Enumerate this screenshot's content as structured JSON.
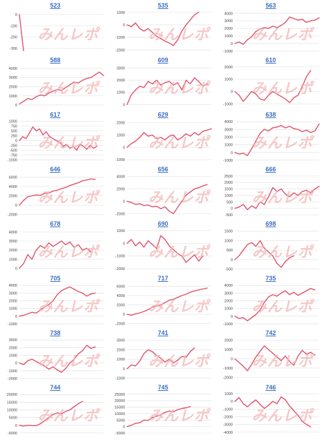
{
  "watermark": "みんレポ",
  "colors": {
    "line": "#e0526b",
    "grid": "#e3e3e3",
    "title": "#3a6fc4",
    "tick": "#444444"
  },
  "chart_data": [
    {
      "type": "line",
      "title": "523",
      "yticks": [
        "0",
        "-100",
        "-200",
        "-300"
      ],
      "ylim": [
        -330,
        30
      ],
      "x": [
        0,
        0.05
      ],
      "values": [
        0,
        -320
      ]
    },
    {
      "type": "line",
      "title": "535",
      "yticks": [
        "1000",
        "0",
        "-1000",
        "-2000"
      ],
      "ylim": [
        -2150,
        1100
      ],
      "x": [
        0,
        0.05,
        0.1,
        0.15,
        0.2,
        0.25,
        0.3,
        0.35,
        0.4,
        0.45,
        0.5,
        0.55,
        0.6,
        0.65,
        0.7,
        0.75,
        0.8,
        0.85
      ],
      "values": [
        0,
        -150,
        150,
        -300,
        -500,
        -300,
        -600,
        -900,
        -1100,
        -1300,
        -1450,
        -1650,
        -1200,
        -500,
        0,
        400,
        800,
        1000
      ]
    },
    {
      "type": "line",
      "title": "563",
      "yticks": [
        "4000",
        "3000",
        "2000",
        "1000",
        "0",
        "-1000"
      ],
      "ylim": [
        -1100,
        4300
      ],
      "x": [
        0,
        0.05,
        0.1,
        0.15,
        0.2,
        0.25,
        0.3,
        0.35,
        0.4,
        0.45,
        0.5,
        0.55,
        0.6,
        0.65,
        0.7,
        0.75,
        0.8,
        0.85,
        0.9,
        0.95,
        1
      ],
      "values": [
        0,
        200,
        -100,
        500,
        900,
        1600,
        1900,
        2100,
        2000,
        2300,
        2100,
        2400,
        2800,
        3500,
        3300,
        3100,
        3200,
        2800,
        3000,
        3100,
        3400
      ]
    },
    {
      "type": "line",
      "title": "588",
      "yticks": [
        "4000",
        "3000",
        "2000",
        "1000",
        "0"
      ],
      "ylim": [
        -150,
        4300
      ],
      "x": [
        0,
        0.05,
        0.1,
        0.15,
        0.2,
        0.25,
        0.3,
        0.35,
        0.4,
        0.45,
        0.5,
        0.55,
        0.6,
        0.65,
        0.7,
        0.75,
        0.8,
        0.85,
        0.9,
        0.95,
        1
      ],
      "values": [
        100,
        400,
        700,
        600,
        900,
        1100,
        1000,
        1300,
        1500,
        1700,
        1600,
        1900,
        2200,
        2500,
        2400,
        2700,
        2900,
        3000,
        3300,
        3600,
        3200
      ]
    },
    {
      "type": "line",
      "title": "609",
      "yticks": [
        "3000",
        "2000",
        "1000",
        "0"
      ],
      "ylim": [
        -150,
        3200
      ],
      "x": [
        0,
        0.05,
        0.1,
        0.15,
        0.2,
        0.25,
        0.3,
        0.35,
        0.4,
        0.45,
        0.5,
        0.55,
        0.6,
        0.65,
        0.7,
        0.75,
        0.8,
        0.85,
        0.9,
        0.95
      ],
      "values": [
        0,
        800,
        1200,
        1500,
        1400,
        1900,
        1700,
        2000,
        1600,
        1800,
        1900,
        1600,
        1800,
        1200,
        2000,
        1700,
        2200,
        1900,
        1500,
        1700
      ]
    },
    {
      "type": "line",
      "title": "610",
      "yticks": [
        "2000",
        "1000",
        "0",
        "-1000"
      ],
      "ylim": [
        -1200,
        2100
      ],
      "x": [
        0,
        0.05,
        0.1,
        0.15,
        0.2,
        0.25,
        0.3,
        0.35,
        0.4,
        0.45,
        0.5,
        0.55,
        0.6,
        0.65,
        0.7,
        0.75,
        0.8,
        0.85,
        0.9
      ],
      "values": [
        0,
        -300,
        -800,
        -400,
        0,
        -200,
        -600,
        -700,
        -300,
        0,
        -200,
        -400,
        -600,
        -900,
        -500,
        -300,
        400,
        1200,
        1700
      ]
    },
    {
      "type": "line",
      "title": "617",
      "yticks": [
        "1000",
        "750",
        "500",
        "250",
        "0",
        "-250",
        "-500",
        "-750",
        "-1000"
      ],
      "ylim": [
        -1050,
        1050
      ],
      "x": [
        0,
        0.04,
        0.08,
        0.12,
        0.16,
        0.2,
        0.24,
        0.28,
        0.32,
        0.36,
        0.4,
        0.44,
        0.48,
        0.52,
        0.56,
        0.6,
        0.64,
        0.68,
        0.72,
        0.76,
        0.8,
        0.84,
        0.88,
        0.92
      ],
      "values": [
        0,
        200,
        100,
        400,
        700,
        500,
        600,
        300,
        450,
        200,
        100,
        0,
        -100,
        -300,
        -200,
        -400,
        -300,
        -500,
        -200,
        -300,
        -450,
        -250,
        -400,
        -300
      ]
    },
    {
      "type": "line",
      "title": "629",
      "yticks": [
        "2000",
        "1000",
        "0",
        "-1000"
      ],
      "ylim": [
        -1100,
        2200
      ],
      "x": [
        0,
        0.05,
        0.1,
        0.15,
        0.2,
        0.25,
        0.3,
        0.35,
        0.4,
        0.45,
        0.5,
        0.55,
        0.6,
        0.65,
        0.7,
        0.75,
        0.8,
        0.85,
        0.9,
        0.95,
        1
      ],
      "values": [
        0,
        300,
        500,
        800,
        1200,
        900,
        1000,
        700,
        800,
        600,
        900,
        1000,
        600,
        800,
        1100,
        900,
        1200,
        1000,
        1300,
        1400,
        1500
      ]
    },
    {
      "type": "line",
      "title": "638",
      "yticks": [
        "4000",
        "3000",
        "2000",
        "1000",
        "0",
        "-1000"
      ],
      "ylim": [
        -1100,
        4200
      ],
      "x": [
        0,
        0.05,
        0.1,
        0.15,
        0.2,
        0.25,
        0.3,
        0.35,
        0.4,
        0.45,
        0.5,
        0.55,
        0.6,
        0.65,
        0.7,
        0.75,
        0.8,
        0.85,
        0.9,
        0.95,
        1
      ],
      "values": [
        0,
        -200,
        -100,
        -400,
        500,
        1500,
        2500,
        3000,
        2800,
        3200,
        3300,
        3500,
        3200,
        3400,
        3100,
        3000,
        2700,
        2900,
        2600,
        2800,
        3700
      ]
    },
    {
      "type": "line",
      "title": "646",
      "yticks": [
        "6000",
        "4000",
        "2000",
        "0",
        "-2000"
      ],
      "ylim": [
        -2200,
        6500
      ],
      "x": [
        0,
        0.05,
        0.1,
        0.15,
        0.2,
        0.25,
        0.3,
        0.35,
        0.4,
        0.45,
        0.5,
        0.55,
        0.6,
        0.65,
        0.7,
        0.75,
        0.8,
        0.85,
        0.9
      ],
      "values": [
        0,
        1000,
        1800,
        2000,
        2200,
        2100,
        2500,
        2600,
        3000,
        3200,
        3500,
        3800,
        4200,
        4500,
        4800,
        5200,
        5400,
        5600,
        5500
      ]
    },
    {
      "type": "line",
      "title": "656",
      "yticks": [
        "4000",
        "2000",
        "0",
        "-2000"
      ],
      "ylim": [
        -2300,
        4300
      ],
      "x": [
        0,
        0.05,
        0.1,
        0.15,
        0.2,
        0.25,
        0.3,
        0.35,
        0.4,
        0.45,
        0.5,
        0.55,
        0.6,
        0.65,
        0.7,
        0.75,
        0.8,
        0.85,
        0.9,
        0.95
      ],
      "values": [
        0,
        -200,
        -500,
        -400,
        -700,
        -600,
        -900,
        -800,
        -1200,
        -900,
        -1600,
        -2000,
        -1000,
        0,
        1000,
        1500,
        2000,
        2200,
        2500,
        2700
      ]
    },
    {
      "type": "line",
      "title": "666",
      "yticks": [
        "2500",
        "2000",
        "1500",
        "1000",
        "500",
        "0",
        "-500"
      ],
      "ylim": [
        -550,
        2600
      ],
      "x": [
        0,
        0.05,
        0.1,
        0.15,
        0.2,
        0.25,
        0.3,
        0.35,
        0.4,
        0.45,
        0.5,
        0.55,
        0.6,
        0.65,
        0.7,
        0.75,
        0.8,
        0.85,
        0.9,
        0.95,
        1
      ],
      "values": [
        0,
        100,
        300,
        -100,
        200,
        0,
        500,
        300,
        900,
        1600,
        1300,
        1500,
        1100,
        900,
        1200,
        1000,
        1300,
        1400,
        1200,
        1500,
        1700
      ]
    },
    {
      "type": "line",
      "title": "678",
      "yticks": [
        "4000",
        "3000",
        "2000",
        "1000",
        "0"
      ],
      "ylim": [
        -200,
        4300
      ],
      "x": [
        0,
        0.05,
        0.1,
        0.15,
        0.2,
        0.25,
        0.3,
        0.35,
        0.4,
        0.45,
        0.5,
        0.55,
        0.6,
        0.65,
        0.7,
        0.75,
        0.8,
        0.85
      ],
      "values": [
        0,
        500,
        1500,
        1000,
        2000,
        2500,
        2200,
        2800,
        2400,
        2700,
        3000,
        2600,
        2900,
        2300,
        2600,
        2000,
        2200,
        1800
      ]
    },
    {
      "type": "line",
      "title": "690",
      "yticks": [
        "1000",
        "0",
        "-1000",
        "-2000"
      ],
      "ylim": [
        -2100,
        1100
      ],
      "x": [
        0,
        0.05,
        0.1,
        0.15,
        0.2,
        0.25,
        0.3,
        0.35,
        0.4,
        0.45,
        0.5,
        0.55,
        0.6,
        0.65,
        0.7,
        0.75,
        0.8,
        0.85,
        0.9
      ],
      "values": [
        0,
        300,
        -200,
        100,
        -300,
        200,
        -100,
        -400,
        600,
        300,
        -200,
        -500,
        -800,
        -1000,
        -1500,
        -1200,
        -900,
        -1400,
        -1000
      ]
    },
    {
      "type": "line",
      "title": "698",
      "yticks": [
        "1500",
        "1000",
        "500",
        "0",
        "-500"
      ],
      "ylim": [
        -550,
        1600
      ],
      "x": [
        0,
        0.05,
        0.1,
        0.15,
        0.2,
        0.25,
        0.3,
        0.35,
        0.4,
        0.45,
        0.5,
        0.55,
        0.6,
        0.65,
        0.7
      ],
      "values": [
        0,
        200,
        500,
        800,
        900,
        700,
        1000,
        600,
        400,
        200,
        -200,
        -400,
        -100,
        100,
        200
      ]
    },
    {
      "type": "line",
      "title": "705",
      "yticks": [
        "4000",
        "3000",
        "2000",
        "1000",
        "0",
        "-1000"
      ],
      "ylim": [
        -1100,
        4200
      ],
      "x": [
        0,
        0.05,
        0.1,
        0.15,
        0.2,
        0.25,
        0.3,
        0.35,
        0.4,
        0.45,
        0.5,
        0.55,
        0.6,
        0.65,
        0.7,
        0.75,
        0.8,
        0.85,
        0.9
      ],
      "values": [
        0,
        100,
        300,
        500,
        400,
        800,
        1200,
        1500,
        2000,
        2800,
        3300,
        3600,
        3800,
        3500,
        3200,
        3000,
        2600,
        2900,
        3000
      ]
    },
    {
      "type": "line",
      "title": "717",
      "yticks": [
        "6000",
        "4000",
        "2000",
        "0",
        "-2000"
      ],
      "ylim": [
        -2200,
        6500
      ],
      "x": [
        0,
        0.05,
        0.1,
        0.15,
        0.2,
        0.25,
        0.3,
        0.35,
        0.4,
        0.45,
        0.5,
        0.55,
        0.6,
        0.65,
        0.7,
        0.75,
        0.8,
        0.85,
        0.9,
        0.95
      ],
      "values": [
        0,
        -200,
        100,
        300,
        600,
        1000,
        1500,
        1800,
        2000,
        2500,
        3000,
        3200,
        3600,
        4000,
        4300,
        4700,
        5000,
        5200,
        5400,
        5600
      ]
    },
    {
      "type": "line",
      "title": "735",
      "yticks": [
        "4000",
        "3000",
        "2000",
        "1000",
        "0",
        "-1000"
      ],
      "ylim": [
        -1100,
        4200
      ],
      "x": [
        0,
        0.05,
        0.1,
        0.15,
        0.2,
        0.25,
        0.3,
        0.35,
        0.4,
        0.45,
        0.5,
        0.55,
        0.6,
        0.65,
        0.7,
        0.75,
        0.8,
        0.85,
        0.9,
        0.95
      ],
      "values": [
        0,
        -300,
        -200,
        -600,
        -200,
        200,
        800,
        1800,
        2500,
        2800,
        2600,
        3000,
        3300,
        2800,
        3100,
        2700,
        3000,
        3300,
        3600,
        3400
      ]
    },
    {
      "type": "line",
      "title": "738",
      "yticks": [
        "3000",
        "2000",
        "1000",
        "0",
        "-1000",
        "-2000"
      ],
      "ylim": [
        -2100,
        3200
      ],
      "x": [
        0,
        0.05,
        0.1,
        0.15,
        0.2,
        0.25,
        0.3,
        0.35,
        0.4,
        0.45,
        0.5,
        0.55,
        0.6,
        0.65,
        0.7,
        0.75,
        0.8,
        0.85,
        0.9
      ],
      "values": [
        0,
        -200,
        300,
        500,
        200,
        -100,
        -400,
        -800,
        -500,
        -900,
        -1200,
        -700,
        0,
        500,
        1200,
        1600,
        2300,
        1900,
        2100
      ]
    },
    {
      "type": "line",
      "title": "741",
      "yticks": [
        "3000",
        "2000",
        "1000",
        "0",
        "-1000"
      ],
      "ylim": [
        -1100,
        3200
      ],
      "x": [
        0,
        0.05,
        0.1,
        0.15,
        0.2,
        0.25,
        0.3,
        0.35,
        0.4,
        0.45,
        0.5,
        0.55,
        0.6,
        0.65,
        0.7,
        0.75,
        0.8
      ],
      "values": [
        0,
        400,
        300,
        800,
        1600,
        2000,
        1800,
        1400,
        1100,
        700,
        1000,
        600,
        900,
        1300,
        1200,
        1800,
        2200
      ]
    },
    {
      "type": "line",
      "title": "742",
      "yticks": [
        "2000",
        "1000",
        "0",
        "-1000",
        "-2000"
      ],
      "ylim": [
        -2200,
        2200
      ],
      "x": [
        0,
        0.05,
        0.1,
        0.15,
        0.2,
        0.25,
        0.3,
        0.35,
        0.4,
        0.45,
        0.5,
        0.55,
        0.6,
        0.65,
        0.7,
        0.75,
        0.8,
        0.85,
        0.9,
        0.95
      ],
      "values": [
        0,
        -400,
        -800,
        -1300,
        -600,
        200,
        800,
        1400,
        1000,
        600,
        200,
        -200,
        300,
        -300,
        -700,
        300,
        900,
        500,
        700,
        400
      ]
    },
    {
      "type": "line",
      "title": "744",
      "yticks": [
        "20000",
        "15000",
        "10000",
        "5000",
        "0",
        "-5000"
      ],
      "ylim": [
        -5500,
        21000
      ],
      "x": [
        0,
        0.05,
        0.1,
        0.15,
        0.2,
        0.25,
        0.3,
        0.35,
        0.4,
        0.45,
        0.5,
        0.55,
        0.6,
        0.65,
        0.7,
        0.75
      ],
      "values": [
        0,
        -500,
        0,
        -200,
        -300,
        1000,
        3000,
        5000,
        7000,
        8000,
        7500,
        9000,
        10000,
        12000,
        14000,
        15500
      ]
    },
    {
      "type": "line",
      "title": "745",
      "yticks": [
        "25000",
        "20000",
        "15000",
        "10000",
        "5000",
        "0",
        "-5000"
      ],
      "ylim": [
        -5500,
        26000
      ],
      "x": [
        0,
        0.05,
        0.1,
        0.15,
        0.2,
        0.25,
        0.3,
        0.35,
        0.4,
        0.45,
        0.5,
        0.55,
        0.6,
        0.65,
        0.7,
        0.75
      ],
      "values": [
        0,
        1000,
        2500,
        3000,
        5000,
        4800,
        7000,
        8000,
        9000,
        11000,
        12000,
        11500,
        13000,
        14000,
        14500,
        15500
      ]
    },
    {
      "type": "line",
      "title": "746",
      "yticks": [
        "1000",
        "0",
        "-1000",
        "-2000",
        "-3000",
        "-4000"
      ],
      "ylim": [
        -4200,
        1100
      ],
      "x": [
        0,
        0.05,
        0.1,
        0.15,
        0.2,
        0.25,
        0.3,
        0.35,
        0.4,
        0.45,
        0.5,
        0.55,
        0.6,
        0.65,
        0.7,
        0.75,
        0.8,
        0.85,
        0.9
      ],
      "values": [
        0,
        500,
        -300,
        -700,
        -200,
        200,
        -400,
        -900,
        -500,
        0,
        -300,
        600,
        200,
        -600,
        -1200,
        -1800,
        -2600,
        -3000,
        -3300
      ]
    }
  ]
}
